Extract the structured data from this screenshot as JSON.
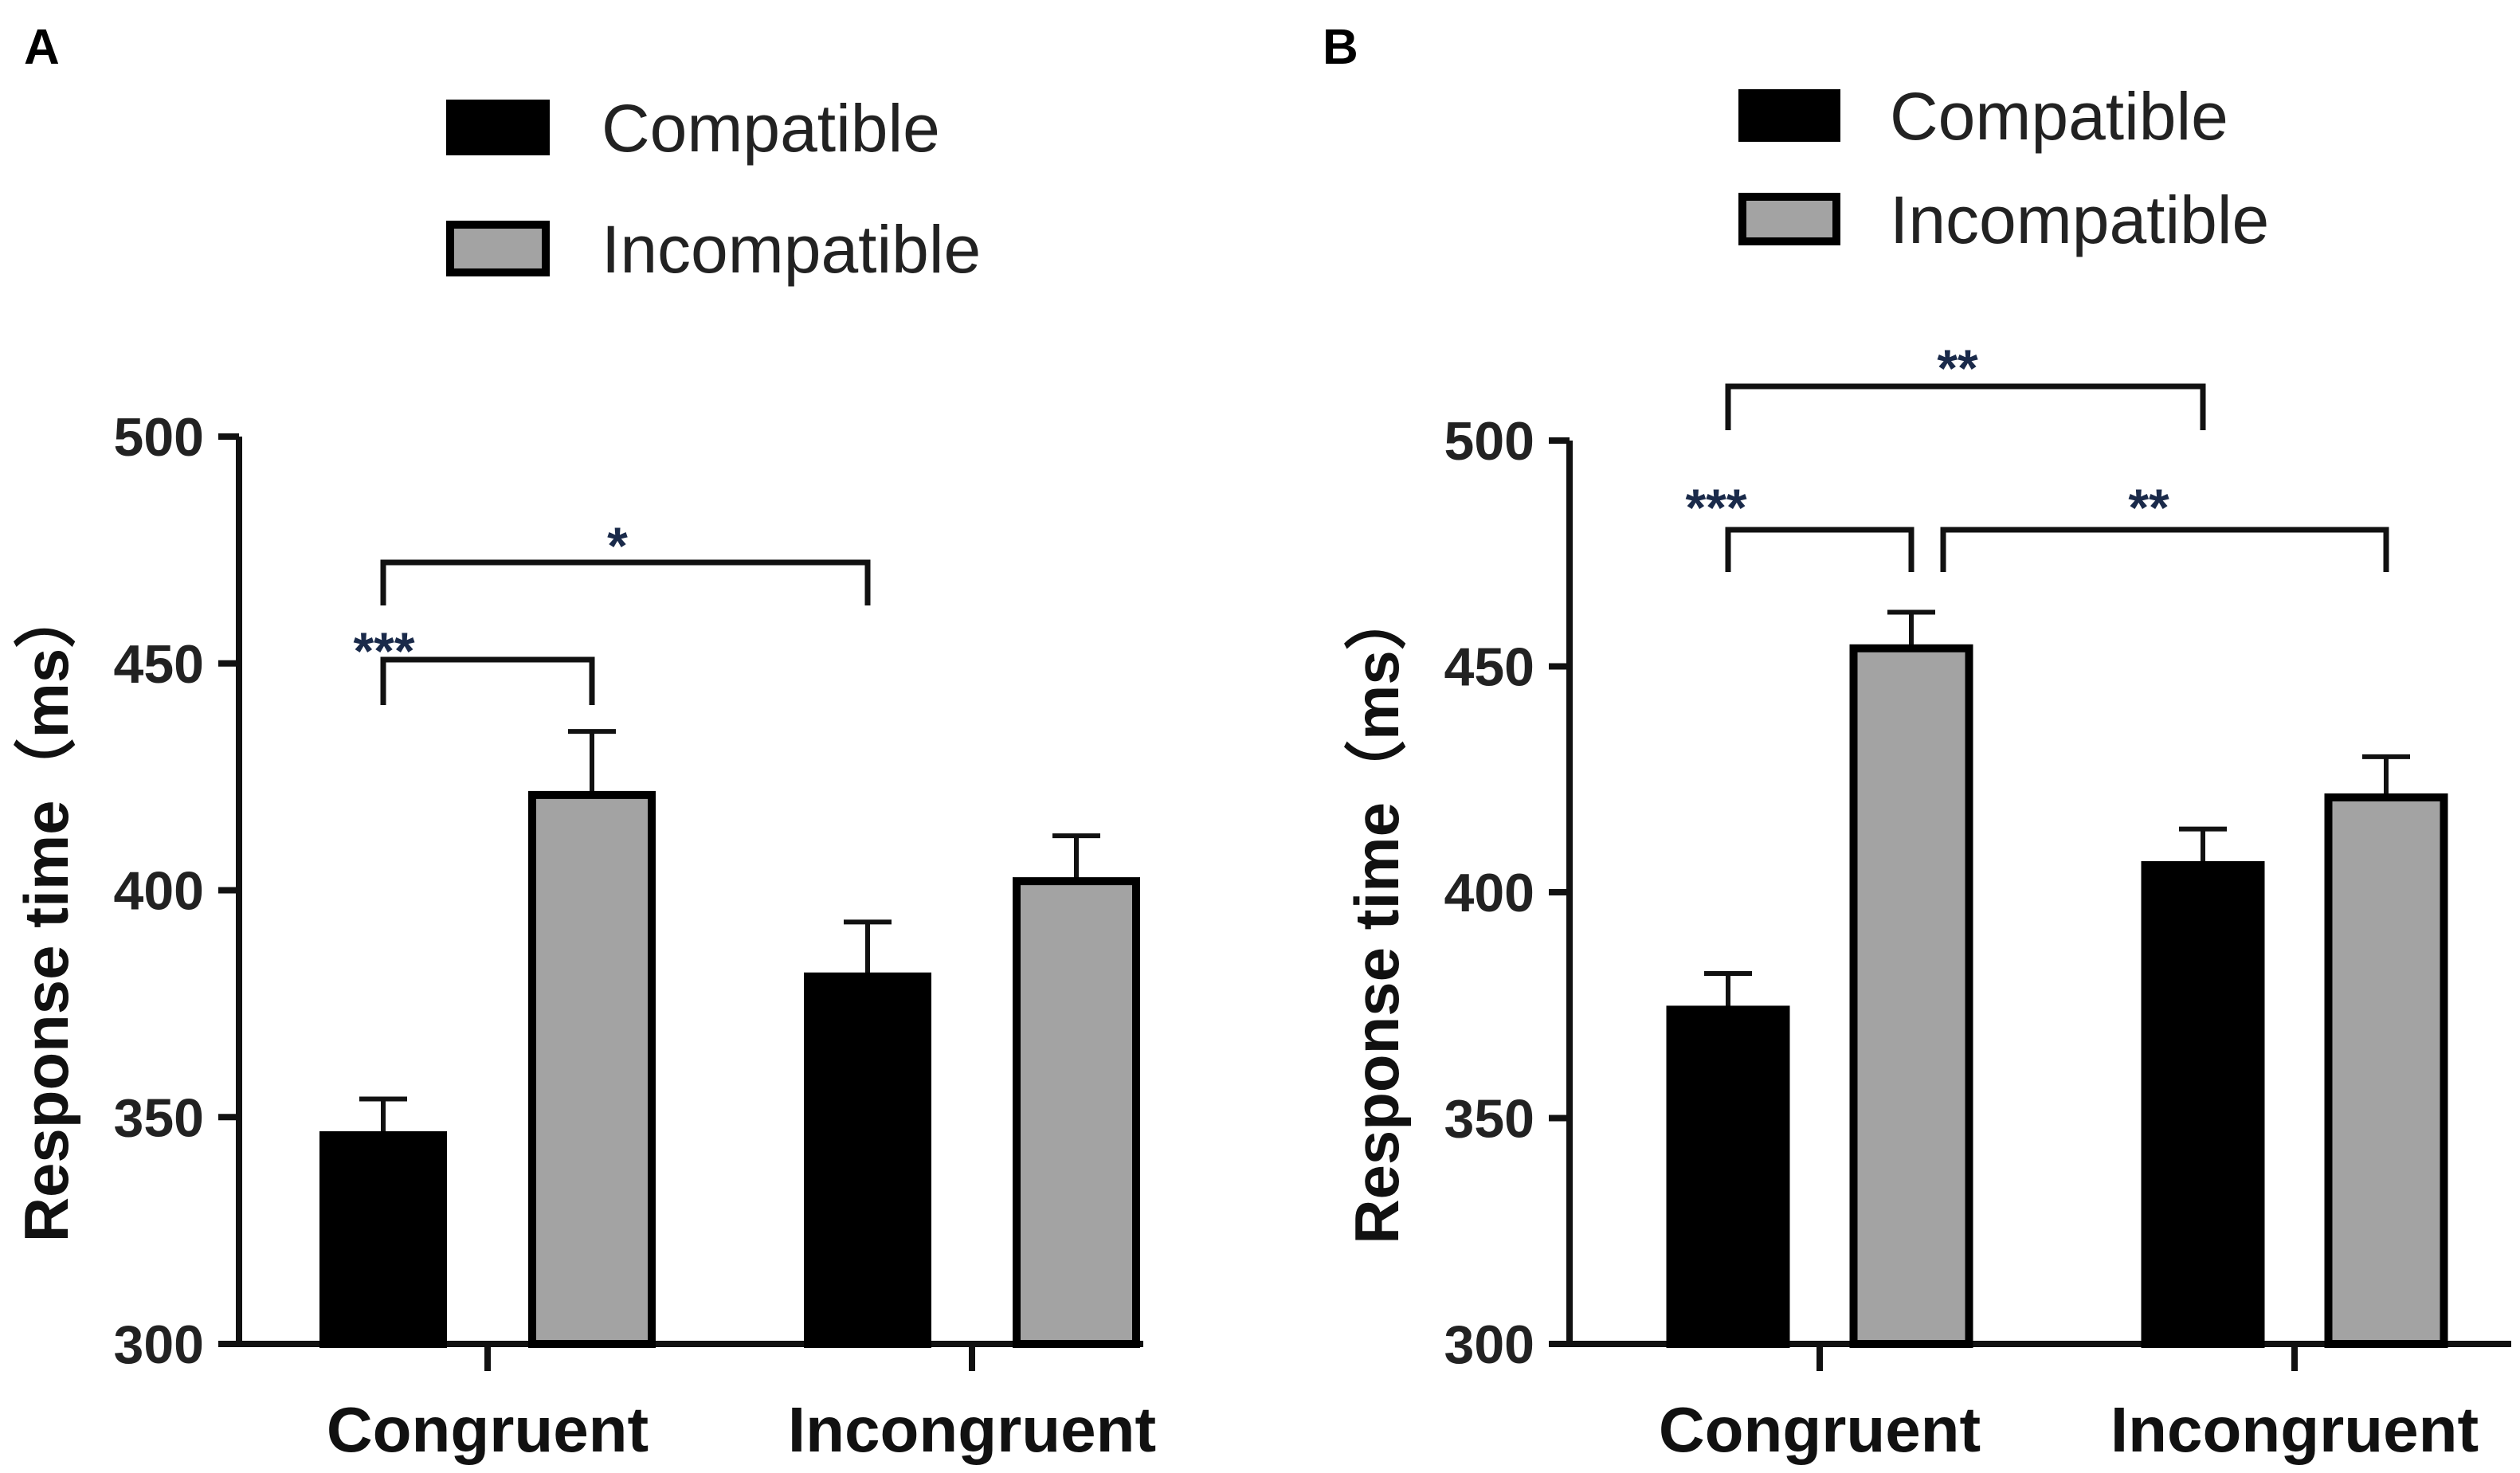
{
  "colors": {
    "compatible": "#000000",
    "incompatible": "#a3a3a3",
    "stroke": "#000000",
    "significance": "#1a2a4a"
  },
  "chart_data": [
    {
      "panel": "A",
      "type": "bar",
      "categories": [
        "Congruent",
        "Incongruent"
      ],
      "series": [
        {
          "name": "Compatible",
          "values": [
            346,
            381
          ],
          "errors": [
            8,
            12
          ]
        },
        {
          "name": "Incompatible",
          "values": [
            421,
            402
          ],
          "errors": [
            14,
            10
          ]
        }
      ],
      "ylabel": "Response time（ms）",
      "ylim": [
        300,
        500
      ],
      "yticks": [
        300,
        350,
        400,
        450,
        500
      ],
      "legend": [
        "Compatible",
        "Incompatible"
      ],
      "legend_position": "top",
      "significance": [
        {
          "from": [
            "Congruent",
            "Compatible"
          ],
          "to": [
            "Congruent",
            "Incompatible"
          ],
          "label": "***"
        },
        {
          "from": [
            "Congruent",
            "Compatible"
          ],
          "to": [
            "Incongruent",
            "Compatible"
          ],
          "label": "*"
        }
      ]
    },
    {
      "panel": "B",
      "type": "bar",
      "categories": [
        "Congruent",
        "Incongruent"
      ],
      "series": [
        {
          "name": "Compatible",
          "values": [
            374,
            406
          ],
          "errors": [
            8,
            8
          ]
        },
        {
          "name": "Incompatible",
          "values": [
            454,
            421
          ],
          "errors": [
            8,
            9
          ]
        }
      ],
      "ylabel": "Response time（ms）",
      "ylim": [
        300,
        500
      ],
      "yticks": [
        300,
        350,
        400,
        450,
        500
      ],
      "legend": [
        "Compatible",
        "Incompatible"
      ],
      "legend_position": "top",
      "significance": [
        {
          "from": [
            "Congruent",
            "Compatible"
          ],
          "to": [
            "Congruent",
            "Incompatible"
          ],
          "label": "***"
        },
        {
          "from": [
            "Congruent",
            "Incompatible"
          ],
          "to": [
            "Incongruent",
            "Incompatible"
          ],
          "label": "**"
        },
        {
          "from": [
            "Congruent",
            "Compatible"
          ],
          "to": [
            "Incongruent",
            "Compatible"
          ],
          "label": "**"
        }
      ]
    }
  ]
}
